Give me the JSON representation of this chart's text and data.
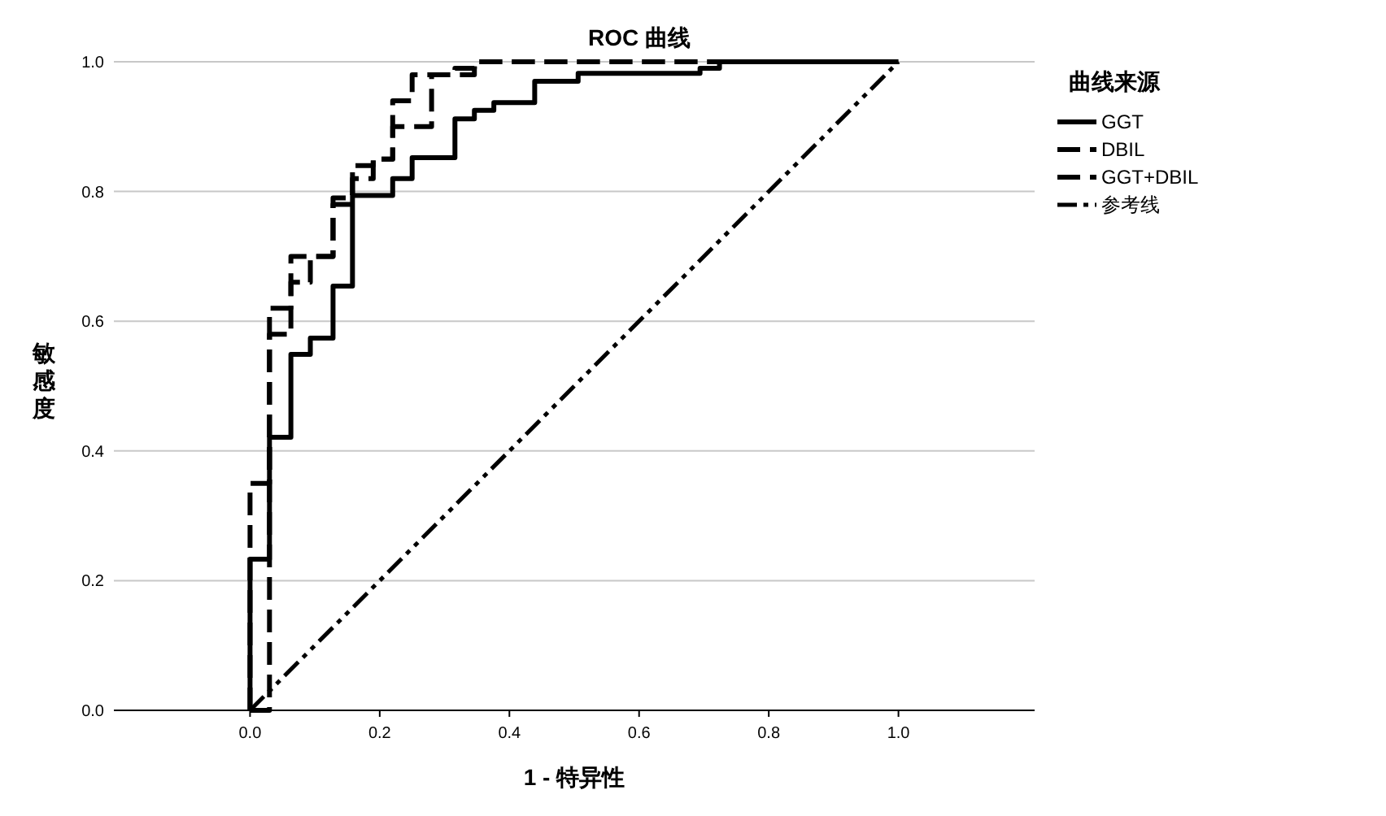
{
  "chart_data": {
    "type": "line",
    "title": "ROC 曲线",
    "xlabel": "1 - 特异性",
    "ylabel": "敏感度",
    "legend_title": "曲线来源",
    "legend": "right",
    "grid": "y",
    "xlim": [
      -0.21,
      1.21
    ],
    "xticks": [
      {
        "value": 0,
        "label": "0.0"
      },
      {
        "value": 0.2,
        "label": "0.2"
      },
      {
        "value": 0.4,
        "label": "0.4"
      },
      {
        "value": 0.6,
        "label": "0.6"
      },
      {
        "value": 0.8,
        "label": "0.8"
      },
      {
        "value": 1,
        "label": "1.0"
      }
    ],
    "ylim": [
      0,
      1
    ],
    "yticks": [
      {
        "value": 0,
        "label": "0.0"
      },
      {
        "value": 0.2,
        "label": "0.2"
      },
      {
        "value": 0.4,
        "label": "0.4"
      },
      {
        "value": 0.6,
        "label": "0.6"
      },
      {
        "value": 0.8,
        "label": "0.8"
      },
      {
        "value": 1,
        "label": "1.0"
      }
    ],
    "series": [
      {
        "name": "GGT",
        "color": "#000000",
        "line_style": "solid",
        "x": [
          0,
          0,
          0.03,
          0.03,
          0.063,
          0.063,
          0.093,
          0.093,
          0.128,
          0.128,
          0.158,
          0.158,
          0.22,
          0.22,
          0.25,
          0.25,
          0.316,
          0.316,
          0.346,
          0.346,
          0.376,
          0.376,
          0.439,
          0.439,
          0.506,
          0.506,
          0.694,
          0.694,
          0.724,
          0.724,
          1
        ],
        "values": [
          0,
          0.233,
          0.233,
          0.421,
          0.421,
          0.549,
          0.549,
          0.574,
          0.574,
          0.654,
          0.654,
          0.794,
          0.794,
          0.82,
          0.82,
          0.852,
          0.852,
          0.912,
          0.912,
          0.925,
          0.925,
          0.937,
          0.937,
          0.97,
          0.97,
          0.982,
          0.982,
          0.99,
          0.99,
          1,
          1
        ]
      },
      {
        "name": "DBIL",
        "color": "#000000",
        "line_style": "dashed",
        "x": [
          0,
          0.03,
          0.03,
          0.063,
          0.063,
          0.128,
          0.128,
          0.158,
          0.158,
          0.19,
          0.19,
          0.22,
          0.22,
          0.28,
          0.28,
          0.346,
          0.346,
          1
        ],
        "values": [
          0,
          0,
          0.58,
          0.58,
          0.7,
          0.7,
          0.79,
          0.79,
          0.84,
          0.84,
          0.85,
          0.85,
          0.9,
          0.9,
          0.98,
          0.98,
          1,
          1
        ]
      },
      {
        "name": "GGT+DBIL",
        "color": "#000000",
        "line_style": "dashed",
        "x": [
          0,
          0,
          0.03,
          0.03,
          0.063,
          0.063,
          0.093,
          0.093,
          0.128,
          0.128,
          0.158,
          0.158,
          0.19,
          0.19,
          0.22,
          0.22,
          0.25,
          0.25,
          0.316,
          0.316,
          0.346,
          0.346,
          1
        ],
        "values": [
          0,
          0.35,
          0.35,
          0.62,
          0.62,
          0.66,
          0.66,
          0.7,
          0.7,
          0.78,
          0.78,
          0.82,
          0.82,
          0.85,
          0.85,
          0.94,
          0.94,
          0.98,
          0.98,
          0.99,
          0.99,
          1,
          1
        ]
      },
      {
        "name": "参考线",
        "color": "#000000",
        "line_style": "dotted",
        "x": [
          0,
          1
        ],
        "values": [
          0,
          1
        ]
      }
    ]
  }
}
